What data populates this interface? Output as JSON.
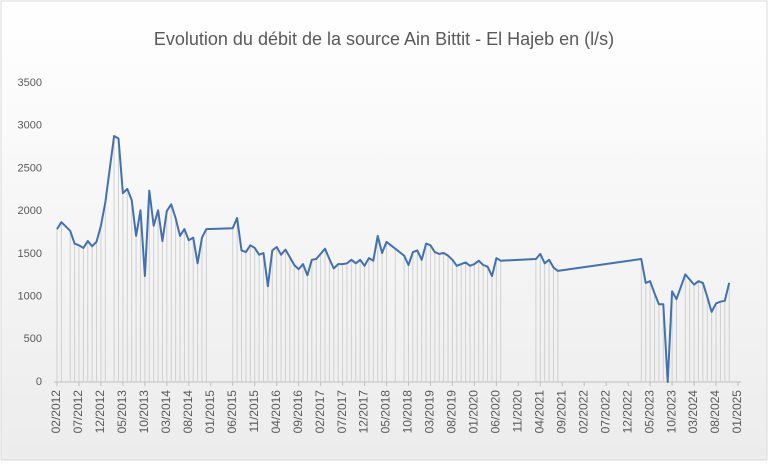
{
  "chart_data": {
    "type": "line",
    "title": "Evolution du débit de la source Ain Bittit - El Hajeb en (l/s)",
    "color": "#4170b4",
    "drop_lines": true,
    "xlim": [
      "02/2012",
      "01/2025"
    ],
    "xticks": [
      "02/2012",
      "07/2012",
      "12/2012",
      "05/2013",
      "10/2013",
      "03/2014",
      "08/2014",
      "01/2015",
      "06/2015",
      "11/2015",
      "04/2016",
      "09/2016",
      "02/2017",
      "07/2017",
      "12/2017",
      "05/2018",
      "10/2018",
      "03/2019",
      "08/2019",
      "01/2020",
      "06/2020",
      "11/2020",
      "04/2021",
      "09/2021",
      "02/2022",
      "07/2022",
      "12/2022",
      "05/2023",
      "10/2023",
      "03/2024",
      "08/2024",
      "01/2025"
    ],
    "ylim": [
      0,
      3500
    ],
    "yticks": [
      0,
      500,
      1000,
      1500,
      2000,
      2500,
      3000,
      3500
    ],
    "x": [
      "02/2012",
      "03/2012",
      "05/2012",
      "06/2012",
      "07/2012",
      "08/2012",
      "09/2012",
      "10/2012",
      "11/2012",
      "12/2012",
      "01/2013",
      "03/2013",
      "04/2013",
      "05/2013",
      "06/2013",
      "07/2013",
      "08/2013",
      "09/2013",
      "10/2013",
      "11/2013",
      "12/2013",
      "01/2014",
      "02/2014",
      "03/2014",
      "04/2014",
      "05/2014",
      "06/2014",
      "07/2014",
      "08/2014",
      "09/2014",
      "10/2014",
      "11/2014",
      "12/2014",
      "06/2015",
      "07/2015",
      "08/2015",
      "09/2015",
      "10/2015",
      "11/2015",
      "12/2015",
      "01/2016",
      "02/2016",
      "03/2016",
      "04/2016",
      "05/2016",
      "06/2016",
      "07/2016",
      "08/2016",
      "09/2016",
      "10/2016",
      "11/2016",
      "12/2016",
      "01/2017",
      "02/2017",
      "03/2017",
      "04/2017",
      "05/2017",
      "06/2017",
      "07/2017",
      "08/2017",
      "09/2017",
      "10/2017",
      "11/2017",
      "12/2017",
      "01/2018",
      "02/2018",
      "03/2018",
      "04/2018",
      "05/2018",
      "07/2018",
      "09/2018",
      "10/2018",
      "11/2018",
      "12/2018",
      "01/2019",
      "02/2019",
      "03/2019",
      "04/2019",
      "05/2019",
      "06/2019",
      "07/2019",
      "08/2019",
      "09/2019",
      "10/2019",
      "11/2019",
      "12/2019",
      "01/2020",
      "02/2020",
      "03/2020",
      "04/2020",
      "05/2020",
      "06/2020",
      "07/2020",
      "03/2021",
      "04/2021",
      "05/2021",
      "06/2021",
      "07/2021",
      "08/2021",
      "03/2023",
      "04/2023",
      "05/2023",
      "06/2023",
      "07/2023",
      "08/2023",
      "09/2023",
      "10/2023",
      "11/2023",
      "01/2024",
      "02/2024",
      "03/2024",
      "04/2024",
      "05/2024",
      "06/2024",
      "07/2024",
      "08/2024",
      "09/2024",
      "10/2024",
      "11/2024"
    ],
    "values": [
      1790,
      1870,
      1770,
      1620,
      1600,
      1570,
      1650,
      1590,
      1640,
      1830,
      2100,
      2880,
      2850,
      2210,
      2260,
      2130,
      1710,
      2010,
      1240,
      2240,
      1830,
      2010,
      1650,
      2000,
      2080,
      1920,
      1710,
      1790,
      1660,
      1690,
      1390,
      1690,
      1790,
      1800,
      1920,
      1540,
      1520,
      1600,
      1570,
      1490,
      1510,
      1120,
      1540,
      1580,
      1490,
      1550,
      1460,
      1370,
      1320,
      1380,
      1250,
      1430,
      1440,
      1500,
      1560,
      1440,
      1330,
      1380,
      1380,
      1390,
      1430,
      1390,
      1430,
      1360,
      1450,
      1420,
      1710,
      1510,
      1640,
      1560,
      1480,
      1370,
      1520,
      1540,
      1430,
      1620,
      1600,
      1520,
      1500,
      1510,
      1480,
      1430,
      1360,
      1380,
      1400,
      1360,
      1380,
      1420,
      1370,
      1350,
      1240,
      1450,
      1420,
      1440,
      1500,
      1390,
      1430,
      1340,
      1300,
      1440,
      1160,
      1180,
      1040,
      910,
      910,
      0,
      1060,
      970,
      1260,
      1200,
      1140,
      1180,
      1160,
      1000,
      820,
      920,
      940,
      950,
      1160
    ]
  }
}
